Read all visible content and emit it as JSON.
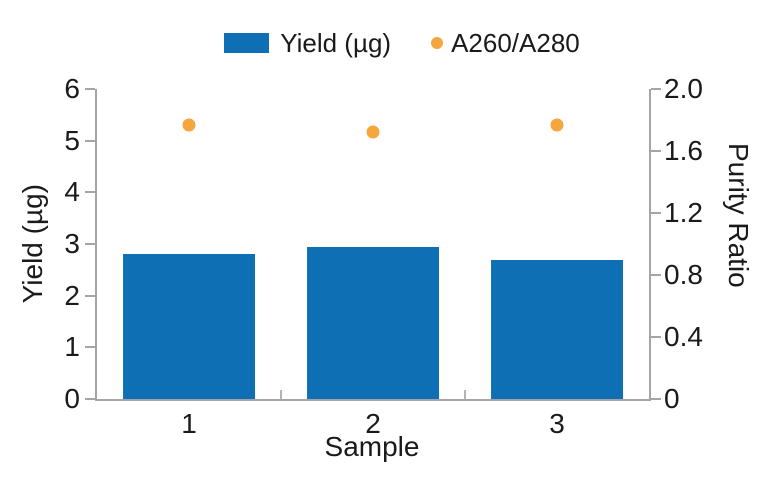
{
  "legend": {
    "items": [
      {
        "label": "Yield (µg)",
        "marker": "square",
        "color": "#0F6FB4"
      },
      {
        "label": "A260/A280",
        "marker": "circle",
        "color": "#F5A63C"
      }
    ]
  },
  "chart_data": {
    "type": "bar",
    "subtype": "dual-axis bar + scatter",
    "categories": [
      "1",
      "2",
      "3"
    ],
    "xlabel": "Sample",
    "series": [
      {
        "name": "Yield (µg)",
        "type": "bar",
        "axis": "left",
        "color": "#0F6FB4",
        "values": [
          2.8,
          2.95,
          2.7
        ]
      },
      {
        "name": "A260/A280",
        "type": "scatter",
        "axis": "right",
        "color": "#F5A63C",
        "values": [
          1.77,
          1.72,
          1.77
        ]
      }
    ],
    "left_axis": {
      "label": "Yield (µg)",
      "min": 0,
      "max": 6,
      "tick_labels": [
        "0",
        "1",
        "2",
        "3",
        "4",
        "5",
        "6"
      ]
    },
    "right_axis": {
      "label": "Purity Ratio",
      "min": 0,
      "max": 2,
      "tick_labels": [
        "0",
        "0.4",
        "0.8",
        "1.2",
        "1.6",
        "2.0"
      ]
    },
    "grid": false,
    "legend_position": "top-center",
    "colors": {
      "spine": "#A5A5A5",
      "inner_tick": "#B3B3B3",
      "text": "#1A1A1A"
    }
  }
}
